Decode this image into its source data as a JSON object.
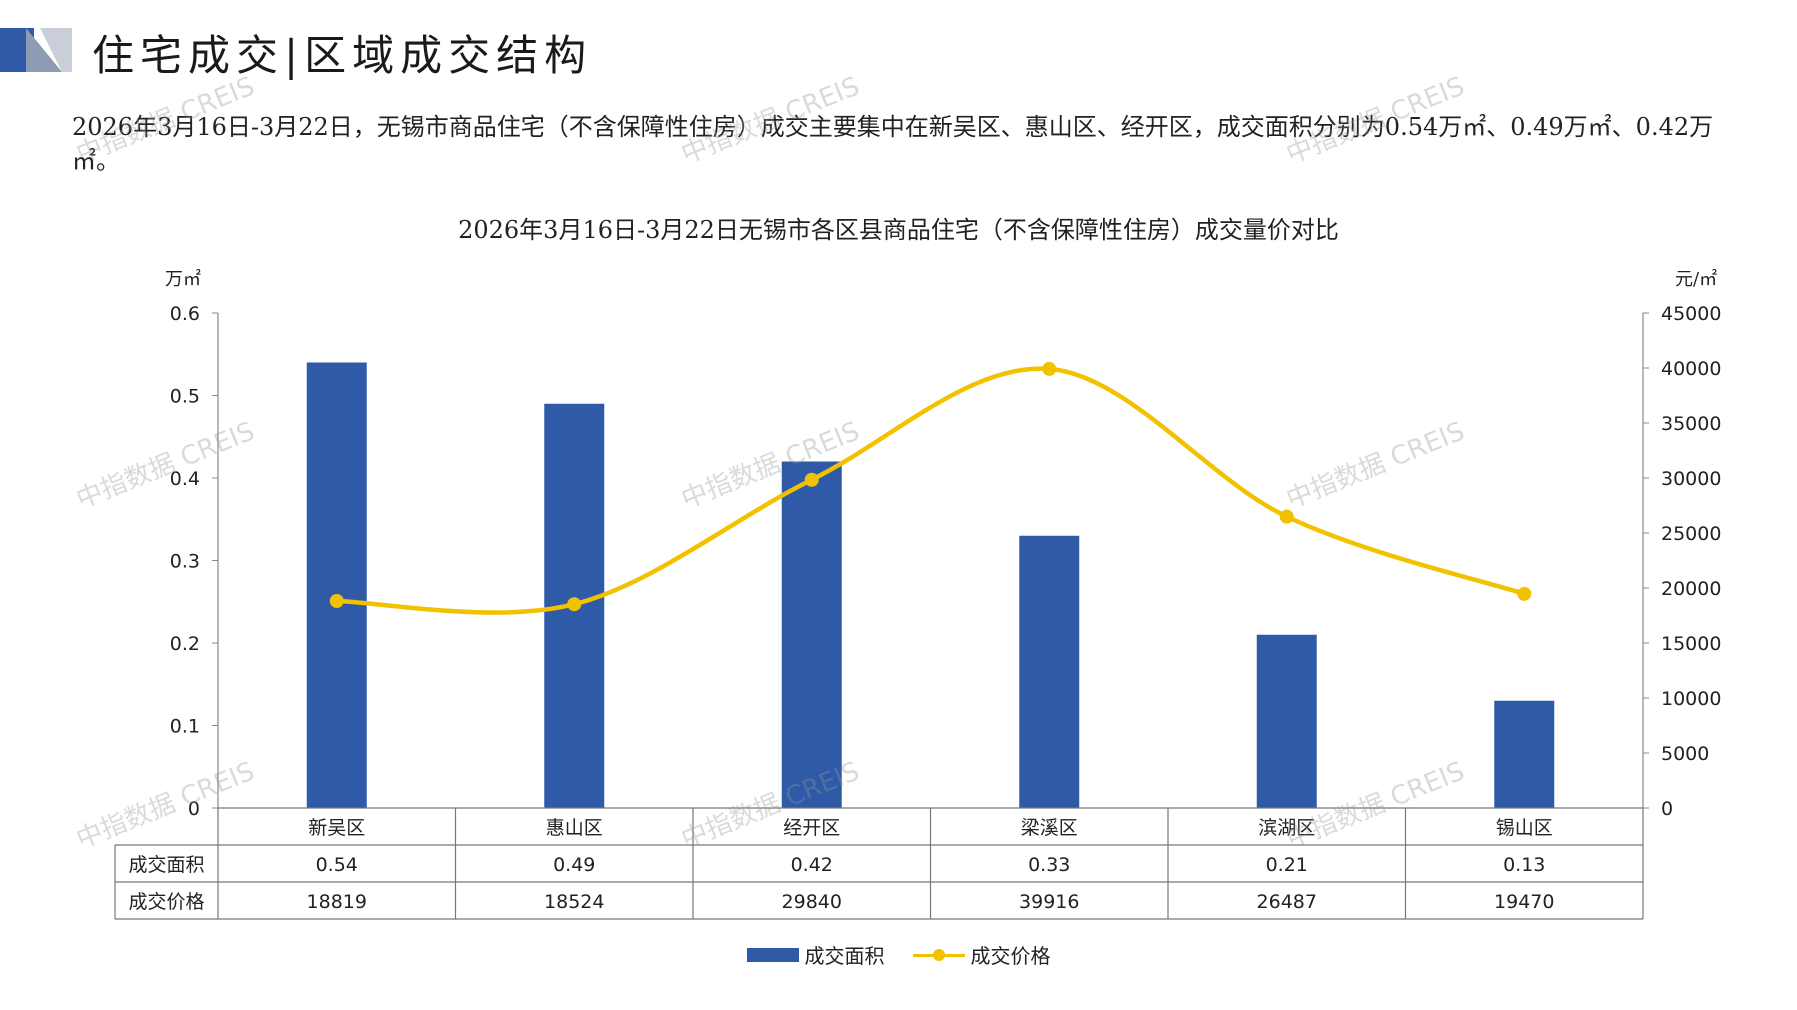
{
  "header": {
    "title": "住宅成交|区域成交结构",
    "accent_color": "#2e5aa7"
  },
  "summary": "2026年3月16日-3月22日，无锡市商品住宅（不含保障性住房）成交主要集中在新吴区、惠山区、经开区，成交面积分别为0.54万㎡、0.49万㎡、0.42万㎡。",
  "watermark": "中指数据 CREIS",
  "chart_data": {
    "type": "bar",
    "title": "2026年3月16日-3月22日无锡市各区县商品住宅（不含保障性住房）成交量价对比",
    "categories": [
      "新吴区",
      "惠山区",
      "经开区",
      "梁溪区",
      "滨湖区",
      "锡山区"
    ],
    "series": [
      {
        "name": "成交面积",
        "type": "bar",
        "axis": "left",
        "color": "#2e5aa7",
        "values": [
          0.54,
          0.49,
          0.42,
          0.33,
          0.21,
          0.13
        ]
      },
      {
        "name": "成交价格",
        "type": "line",
        "axis": "right",
        "color": "#f2c200",
        "values": [
          18819,
          18524,
          29840,
          39916,
          26487,
          19470
        ]
      }
    ],
    "y_left": {
      "unit": "万㎡",
      "ylim": [
        0,
        0.6
      ],
      "ticks": [
        "0",
        "0.1",
        "0.2",
        "0.3",
        "0.4",
        "0.5",
        "0.6"
      ]
    },
    "y_right": {
      "unit": "元/㎡",
      "ylim": [
        0,
        45000
      ],
      "ticks": [
        "0",
        "5000",
        "10000",
        "15000",
        "20000",
        "25000",
        "30000",
        "35000",
        "40000",
        "45000"
      ]
    },
    "table": {
      "rows": [
        {
          "label": "成交面积",
          "values": [
            "0.54",
            "0.49",
            "0.42",
            "0.33",
            "0.21",
            "0.13"
          ]
        },
        {
          "label": "成交价格",
          "values": [
            "18819",
            "18524",
            "29840",
            "39916",
            "26487",
            "19470"
          ]
        }
      ]
    },
    "legend": {
      "position": "bottom",
      "items": [
        "成交面积",
        "成交价格"
      ]
    },
    "grid": false
  }
}
